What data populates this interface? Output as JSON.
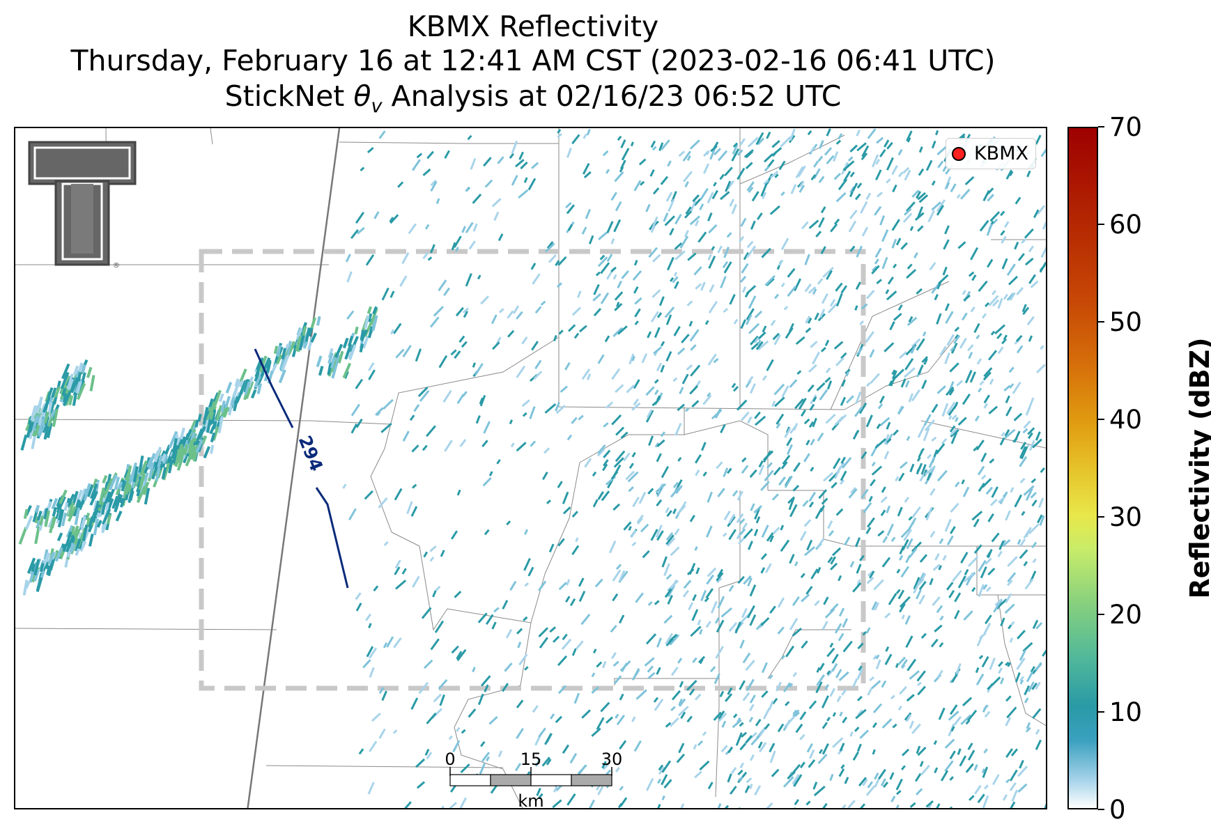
{
  "title": {
    "line1": "KBMX Reflectivity",
    "line2": "Thursday, February 16 at 12:41 AM CST (2023-02-16 06:41 UTC)",
    "line3_prefix": "StickNet ",
    "line3_theta": "θ",
    "line3_sub": "v",
    "line3_suffix": " Analysis at 02/16/23 06:52 UTC"
  },
  "legend": {
    "label": "KBMX",
    "marker_color": "#ff2020"
  },
  "contour": {
    "label": "294",
    "color": "#0a2a7a"
  },
  "scalebar": {
    "ticks": [
      "0",
      "15",
      "30"
    ],
    "unit": "km"
  },
  "colorbar": {
    "label": "Reflectivity (dBZ)",
    "ticks": [
      "0",
      "10",
      "20",
      "30",
      "40",
      "50",
      "60",
      "70"
    ],
    "min": 0,
    "max": 70
  },
  "colors": {
    "echo_light": "#a8d4ea",
    "echo_mid": "#2a9aa6",
    "echo_green": "#6cc08a",
    "analysis_box": "#c8c8c8"
  },
  "logo": {
    "name": "texas-tech-double-t-logo"
  }
}
